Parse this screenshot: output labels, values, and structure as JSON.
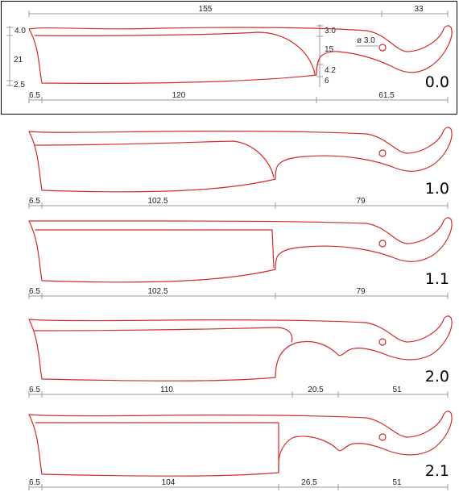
{
  "colors": {
    "outline": "#d42a2a",
    "dimension": "#9a9a9a",
    "text": "#222222",
    "frame": "#000000"
  },
  "designs": [
    {
      "label": "0.0",
      "top_dims": {
        "overall": "155",
        "tip": "33"
      },
      "left_dims": {
        "spine": "4.0",
        "height": "21",
        "edge": "2.5"
      },
      "mid_dims": {
        "a": "3.0",
        "b": "15",
        "c": "4.2",
        "d": "6"
      },
      "hole": "ø 3.0",
      "bottom_dims": {
        "point": "6.5",
        "blade": "120",
        "handle": "61.5"
      }
    },
    {
      "label": "1.0",
      "bottom_dims": {
        "point": "6.5",
        "blade": "102.5",
        "handle": "79"
      }
    },
    {
      "label": "1.1",
      "bottom_dims": {
        "point": "6.5",
        "blade": "102.5",
        "handle": "79"
      }
    },
    {
      "label": "2.0",
      "bottom_dims": {
        "point": "6.5",
        "blade": "110",
        "bolster": "20.5",
        "handle": "51"
      }
    },
    {
      "label": "2.1",
      "bottom_dims": {
        "point": "6.5",
        "blade": "104",
        "bolster": "26.5",
        "handle": "51"
      }
    }
  ]
}
